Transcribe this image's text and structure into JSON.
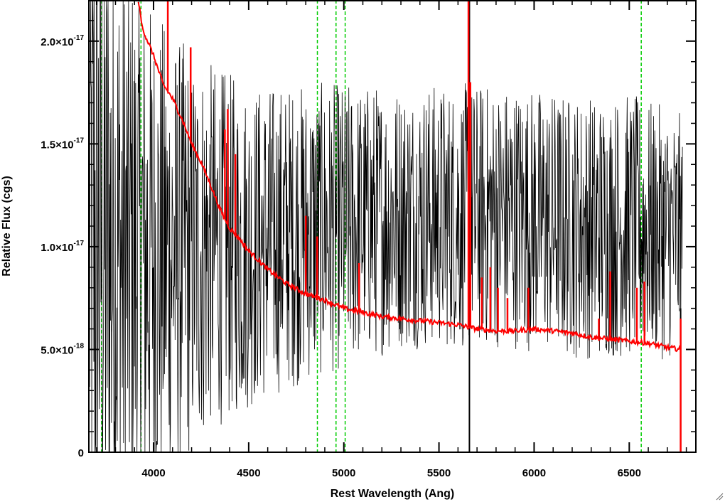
{
  "chart_data": {
    "type": "line",
    "title": "",
    "xlabel": "Rest Wavelength (Ang)",
    "ylabel": "Relative Flux (cgs)",
    "xlim": [
      3660,
      6850
    ],
    "ylim": [
      0,
      2.2e-17
    ],
    "x_ticks": [
      4000,
      4500,
      5000,
      5500,
      6000,
      6500
    ],
    "x_tick_labels": [
      "4000",
      "4500",
      "5000",
      "5500",
      "6000",
      "6500"
    ],
    "y_ticks": [
      0,
      5e-18,
      1e-17,
      1.5e-17,
      2e-17
    ],
    "y_tick_labels": [
      {
        "mantissa": "0",
        "exponent": ""
      },
      {
        "mantissa": "5.0×10",
        "exponent": "-18"
      },
      {
        "mantissa": "1.0×10",
        "exponent": "-17"
      },
      {
        "mantissa": "1.5×10",
        "exponent": "-17"
      },
      {
        "mantissa": "2.0×10",
        "exponent": "-17"
      }
    ],
    "grid": false,
    "series": [
      {
        "color": "#000000",
        "style": "noisy-observed",
        "envelope": {
          "x": [
            3660,
            3750,
            3850,
            3950,
            4100,
            4300,
            4500,
            4700,
            5000,
            5300,
            5600,
            5900,
            6200,
            6500,
            6780
          ],
          "center": [
            1.1e-17,
            1e-17,
            9.5e-18,
            9.5e-18,
            9.5e-18,
            1e-17,
            1e-17,
            1.05e-17,
            1.1e-17,
            1.15e-17,
            1.15e-17,
            1.15e-17,
            1.1e-17,
            1.1e-17,
            1.05e-17
          ],
          "amplitude": [
            2e-17,
            1.8e-17,
            1.5e-17,
            1.3e-17,
            1.1e-17,
            9e-18,
            8e-18,
            7.5e-18,
            7e-18,
            6.5e-18,
            6.5e-18,
            6.5e-18,
            6.5e-18,
            6.5e-18,
            6e-18
          ]
        },
        "spikes": [
          {
            "x": 5660,
            "y": 2.2e-17
          },
          {
            "x": 5660,
            "y": 0
          },
          {
            "x": 6770,
            "y": 0
          }
        ]
      },
      {
        "color": "#ff0000",
        "style": "model-continuum",
        "x": [
          3920,
          3940,
          3960,
          4000,
          4050,
          4100,
          4150,
          4200,
          4250,
          4300,
          4350,
          4400,
          4450,
          4500,
          4600,
          4700,
          4800,
          4900,
          5000,
          5100,
          5200,
          5300,
          5400,
          5500,
          5600,
          5700,
          5800,
          5900,
          6000,
          6100,
          6200,
          6300,
          6400,
          6500,
          6600,
          6700,
          6770
        ],
        "y": [
          2.2e-17,
          2.07e-17,
          2.02e-17,
          1.93e-17,
          1.79e-17,
          1.72e-17,
          1.62e-17,
          1.5e-17,
          1.41e-17,
          1.3e-17,
          1.18e-17,
          1.09e-17,
          1.04e-17,
          9.8e-18,
          8.9e-18,
          8.2e-18,
          7.7e-18,
          7.4e-18,
          7e-18,
          6.8e-18,
          6.6e-18,
          6.5e-18,
          6.4e-18,
          6.3e-18,
          6.2e-18,
          6e-18,
          5.9e-18,
          5.9e-18,
          6e-18,
          5.9e-18,
          5.8e-18,
          5.6e-18,
          5.5e-18,
          5.4e-18,
          5.3e-18,
          5.1e-18,
          5e-18
        ],
        "emission_lines": [
          {
            "x": 4075,
            "y": 2.2e-17
          },
          {
            "x": 4195,
            "y": 1.97e-17
          },
          {
            "x": 4375,
            "y": 1.57e-17
          },
          {
            "x": 4390,
            "y": 1.67e-17
          },
          {
            "x": 4430,
            "y": 1.45e-17
          },
          {
            "x": 4800,
            "y": 1.15e-17
          },
          {
            "x": 4860,
            "y": 1.05e-17
          },
          {
            "x": 5080,
            "y": 9.2e-18
          },
          {
            "x": 5655,
            "y": 2.2e-17
          },
          {
            "x": 5665,
            "y": 1.8e-17
          },
          {
            "x": 5725,
            "y": 8.5e-18
          },
          {
            "x": 5770,
            "y": 9e-18
          },
          {
            "x": 5810,
            "y": 8e-18
          },
          {
            "x": 5860,
            "y": 7.5e-18
          },
          {
            "x": 5970,
            "y": 8e-18
          },
          {
            "x": 6340,
            "y": 6.5e-18
          },
          {
            "x": 6400,
            "y": 8.8e-18
          },
          {
            "x": 6540,
            "y": 8e-18
          },
          {
            "x": 6580,
            "y": 8.3e-18
          },
          {
            "x": 6770,
            "y": 6.5e-18
          }
        ],
        "edge_drop": {
          "x": 6770,
          "y": 0
        }
      }
    ],
    "reference_lines": {
      "color": "#00cc00",
      "style": "dashed",
      "x": [
        3727,
        3934,
        4861,
        4959,
        5007,
        6563
      ]
    }
  }
}
